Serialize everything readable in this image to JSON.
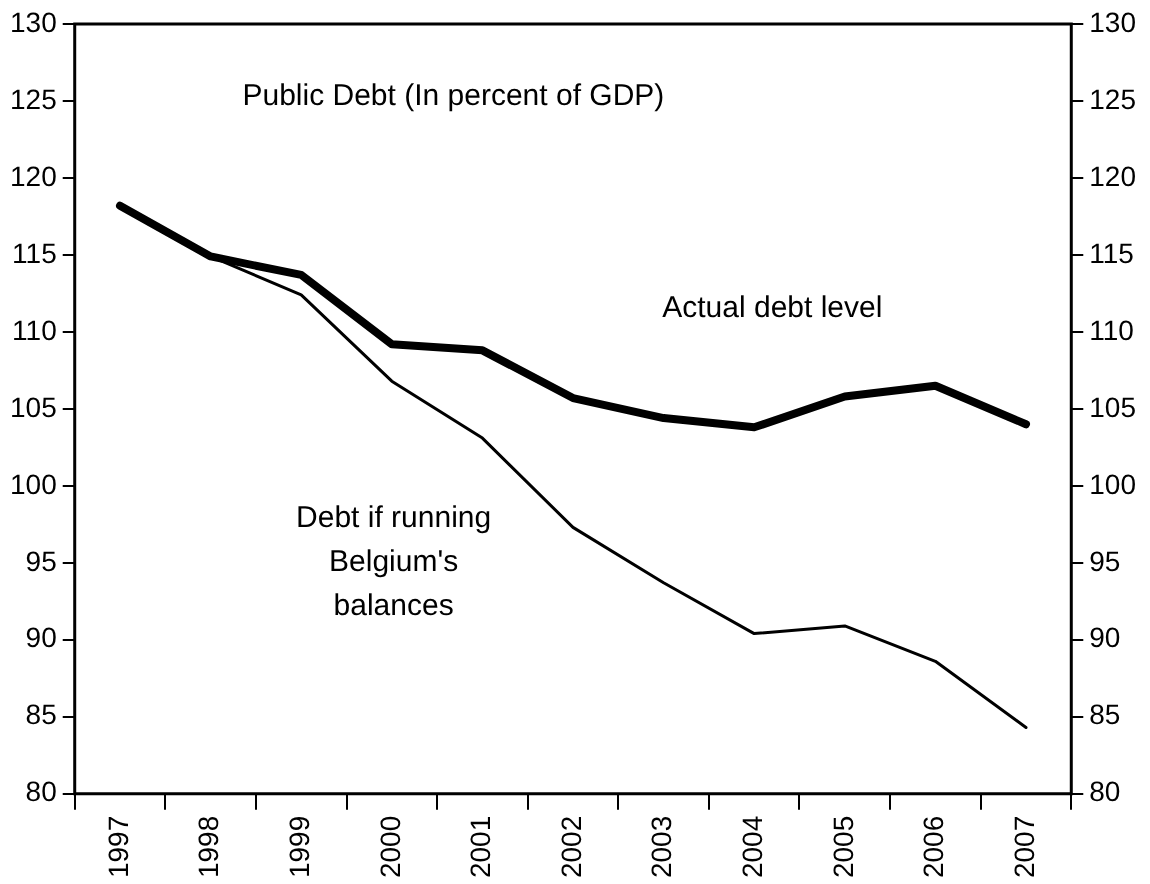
{
  "chart_data": {
    "type": "line",
    "title": "Public Debt (In percent of GDP)",
    "categories": [
      "1997",
      "1998",
      "1999",
      "2000",
      "2001",
      "2002",
      "2003",
      "2004",
      "2005",
      "2006",
      "2007"
    ],
    "series": [
      {
        "name": "Actual debt level",
        "color": "#000000",
        "values": [
          118.2,
          114.9,
          113.7,
          109.2,
          108.8,
          105.7,
          104.4,
          103.8,
          105.8,
          106.5,
          104.0
        ]
      },
      {
        "name": "Debt if running Belgium's balances",
        "color": "#000000",
        "values": [
          118.2,
          114.9,
          112.4,
          106.8,
          103.1,
          97.3,
          93.7,
          90.4,
          90.9,
          88.6,
          84.3
        ]
      }
    ],
    "ylim": [
      80,
      130
    ],
    "yticks": [
      80,
      85,
      90,
      95,
      100,
      105,
      110,
      115,
      120,
      125,
      130
    ],
    "y2lim": [
      80,
      130
    ],
    "y2ticks": [
      80,
      85,
      90,
      95,
      100,
      105,
      110,
      115,
      120,
      125,
      130
    ],
    "grid": false,
    "legend": false,
    "marker": "none",
    "line_style": "solid"
  }
}
